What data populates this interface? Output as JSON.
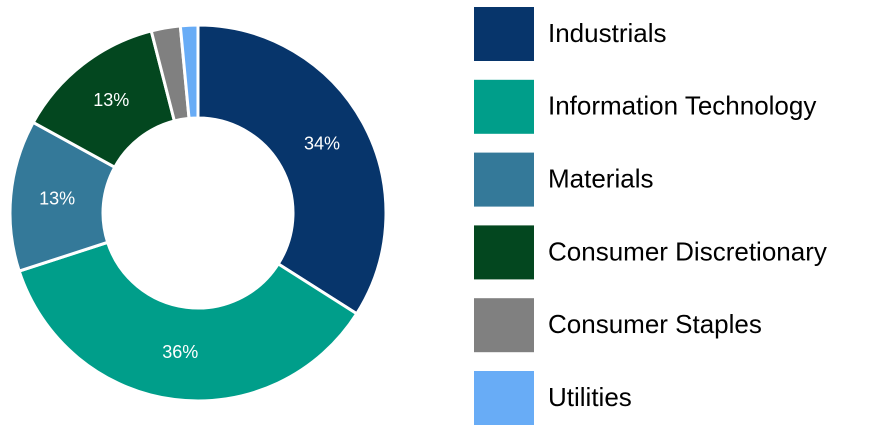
{
  "chart_data": {
    "type": "donut",
    "categories": [
      "Industrials",
      "Information Technology",
      "Materials",
      "Consumer Discretionary",
      "Consumer Staples",
      "Utilities"
    ],
    "values": [
      34,
      36,
      13,
      13,
      2.5,
      1.5
    ],
    "value_labels": [
      "34%",
      "36%",
      "13%",
      "13%",
      null,
      null
    ],
    "colors": [
      "#07356b",
      "#009e8a",
      "#347999",
      "#03471f",
      "#808080",
      "#68acf6"
    ]
  }
}
